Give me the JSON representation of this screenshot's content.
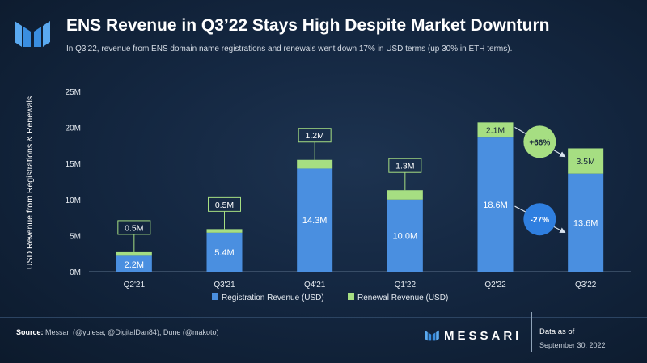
{
  "header": {
    "title": "ENS Revenue in Q3’22 Stays High Despite Market Downturn",
    "subtitle": "In Q3’22, revenue from ENS domain name registrations and renewals went down 17% in USD terms (up 30% in ETH terms)."
  },
  "chart_data": {
    "type": "bar",
    "stacked": true,
    "categories": [
      "Q2'21",
      "Q3'21",
      "Q4'21",
      "Q1'22",
      "Q2'22",
      "Q3'22"
    ],
    "series": [
      {
        "name": "Registration Revenue (USD)",
        "color": "#4a8fe0",
        "values": [
          2.2,
          5.4,
          14.3,
          10.0,
          18.6,
          13.6
        ],
        "labels": [
          "2.2M",
          "5.4M",
          "14.3M",
          "10.0M",
          "18.6M",
          "13.6M"
        ]
      },
      {
        "name": "Renewal Revenue (USD)",
        "color": "#a6de82",
        "values": [
          0.5,
          0.5,
          1.2,
          1.3,
          2.1,
          3.5
        ],
        "labels": [
          "0.5M",
          "0.5M",
          "1.2M",
          "1.3M",
          "2.1M",
          "3.5M"
        ]
      }
    ],
    "ylabel": "USD Revenue from Registrations & Renewals",
    "ylim": [
      0,
      25
    ],
    "yticks": [
      0,
      5,
      10,
      15,
      20,
      25
    ],
    "ytick_labels": [
      "0M",
      "5M",
      "10M",
      "15M",
      "20M",
      "25M"
    ],
    "gridlines": false,
    "legend_position": "bottom",
    "annotations": [
      {
        "text": "+66%",
        "series": "Renewal Revenue (USD)",
        "from": "Q2'22",
        "to": "Q3'22",
        "color": "#a6de82"
      },
      {
        "text": "-27%",
        "series": "Registration Revenue (USD)",
        "from": "Q2'22",
        "to": "Q3'22",
        "color": "#2f7fe0"
      }
    ]
  },
  "footer": {
    "source_label": "Source:",
    "source_text": "Messari (@yulesa, @DigitalDan84), Dune (@makoto)",
    "brand": "MESSARI",
    "data_as_of_label": "Data as of",
    "data_as_of_date": "September 30, 2022"
  }
}
